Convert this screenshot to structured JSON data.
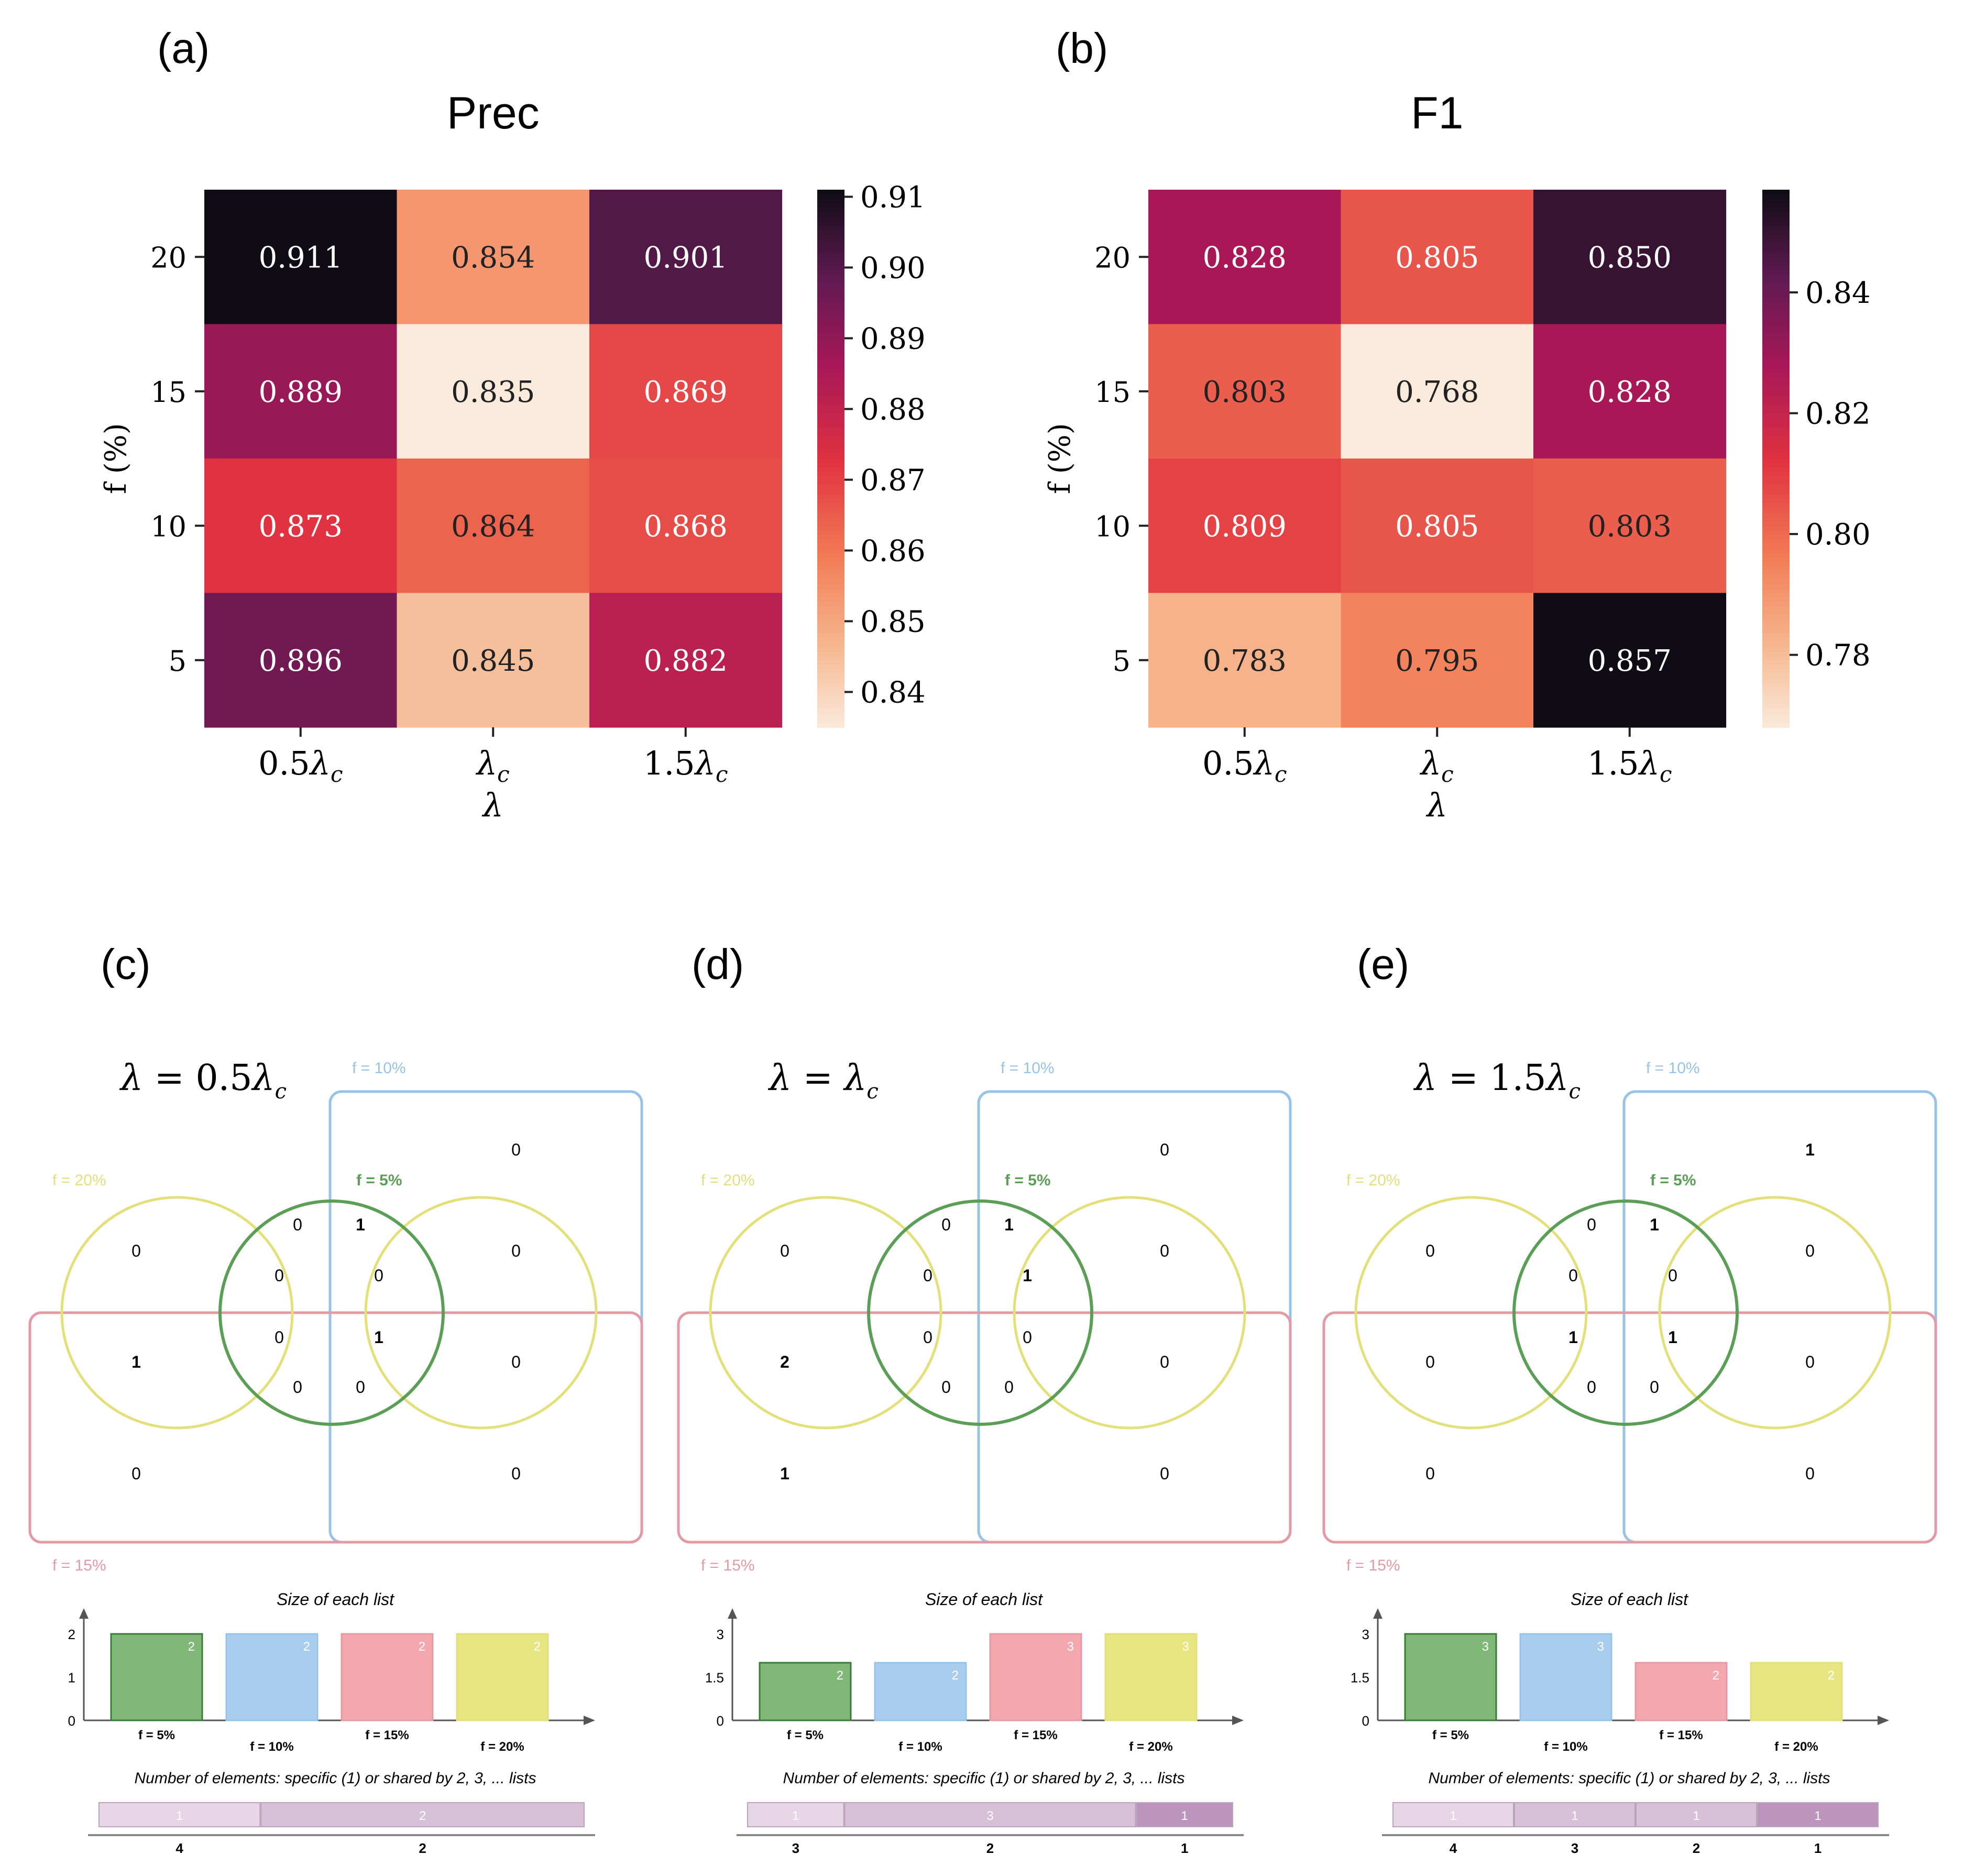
{
  "panels": {
    "a": "(a)",
    "b": "(b)",
    "c": "(c)",
    "d": "(d)",
    "e": "(e)"
  },
  "chart_data": [
    {
      "type": "heatmap",
      "panel": "(a)",
      "title": "Prec",
      "xlabel": "λ",
      "ylabel": "f (%)",
      "x_categories": [
        "0.5λc",
        "λc",
        "1.5λc"
      ],
      "y_categories": [
        "20",
        "15",
        "10",
        "5"
      ],
      "values": [
        [
          0.911,
          0.854,
          0.901
        ],
        [
          0.889,
          0.835,
          0.869
        ],
        [
          0.873,
          0.864,
          0.868
        ],
        [
          0.896,
          0.845,
          0.882
        ]
      ],
      "value_labels": [
        [
          "0.911",
          "0.854",
          "0.901"
        ],
        [
          "0.889",
          "0.835",
          "0.869"
        ],
        [
          "0.873",
          "0.864",
          "0.868"
        ],
        [
          "0.896",
          "0.845",
          "0.882"
        ]
      ],
      "colorbar": {
        "range": [
          0.835,
          0.911
        ],
        "ticks": [
          0.91,
          0.9,
          0.89,
          0.88,
          0.87,
          0.86,
          0.85,
          0.84
        ],
        "tick_labels": [
          "0.91",
          "0.90",
          "0.89",
          "0.88",
          "0.87",
          "0.86",
          "0.85",
          "0.84"
        ]
      }
    },
    {
      "type": "heatmap",
      "panel": "(b)",
      "title": "F1",
      "xlabel": "λ",
      "ylabel": "f (%)",
      "x_categories": [
        "0.5λc",
        "λc",
        "1.5λc"
      ],
      "y_categories": [
        "20",
        "15",
        "10",
        "5"
      ],
      "values": [
        [
          0.828,
          0.805,
          0.85
        ],
        [
          0.803,
          0.768,
          0.828
        ],
        [
          0.809,
          0.805,
          0.803
        ],
        [
          0.783,
          0.795,
          0.857
        ]
      ],
      "value_labels": [
        [
          "0.828",
          "0.805",
          "0.850"
        ],
        [
          "0.803",
          "0.768",
          "0.828"
        ],
        [
          "0.809",
          "0.805",
          "0.803"
        ],
        [
          "0.783",
          "0.795",
          "0.857"
        ]
      ],
      "colorbar": {
        "range": [
          0.768,
          0.857
        ],
        "ticks": [
          0.84,
          0.82,
          0.8,
          0.78
        ],
        "tick_labels": [
          "0.84",
          "0.82",
          "0.80",
          "0.78"
        ]
      }
    }
  ],
  "venn_panels": [
    {
      "panel": "(c)",
      "lambda_lhs": "λ = ",
      "lambda_rhs": "0.5λ",
      "set_labels": {
        "f10": "f = 10%",
        "f20": "f = 20%",
        "f5": "f = 5%",
        "f15": "f = 15%"
      },
      "regions": {
        "topright": "0",
        "left_outer": "0",
        "top_left": "0",
        "top_right": "1",
        "right_outer": "0",
        "c_ul": "0",
        "c_ur": "0",
        "c_ll": "0",
        "c_lr": "1",
        "left_pink": "1",
        "right_pink": "0",
        "bot_left": "0",
        "bot_right": "0",
        "bl_corner": "0",
        "br_corner": "0"
      },
      "bar_chart": {
        "title": "Size of each list",
        "y_ticks": [
          "2",
          "1",
          "0"
        ],
        "ymax": 2,
        "bars": [
          {
            "label": "f = 5%",
            "value": 2,
            "value_label": "2"
          },
          {
            "label": "f = 10%",
            "value": 2,
            "value_label": "2"
          },
          {
            "label": "f = 15%",
            "value": 2,
            "value_label": "2"
          },
          {
            "label": "f = 20%",
            "value": 2,
            "value_label": "2"
          }
        ]
      },
      "elements_title": "Number of elements: specific (1) or shared by 2, 3, ... lists",
      "elements": [
        {
          "count": "1",
          "shared_by": "4",
          "weight": 1
        },
        {
          "count": "2",
          "shared_by": "2",
          "weight": 2
        }
      ]
    },
    {
      "panel": "(d)",
      "lambda_lhs": "λ = ",
      "lambda_rhs": "λ",
      "set_labels": {
        "f10": "f = 10%",
        "f20": "f = 20%",
        "f5": "f = 5%",
        "f15": "f = 15%"
      },
      "regions": {
        "topright": "0",
        "left_outer": "0",
        "top_left": "0",
        "top_right": "1",
        "right_outer": "0",
        "c_ul": "0",
        "c_ur": "1",
        "c_ll": "0",
        "c_lr": "0",
        "left_pink": "2",
        "right_pink": "0",
        "bot_left": "0",
        "bot_right": "0",
        "bl_corner": "1",
        "br_corner": "0"
      },
      "bar_chart": {
        "title": "Size of each list",
        "y_ticks": [
          "3",
          "1.5",
          "0"
        ],
        "ymax": 3,
        "bars": [
          {
            "label": "f = 5%",
            "value": 2,
            "value_label": "2"
          },
          {
            "label": "f = 10%",
            "value": 2,
            "value_label": "2"
          },
          {
            "label": "f = 15%",
            "value": 3,
            "value_label": "3"
          },
          {
            "label": "f = 20%",
            "value": 3,
            "value_label": "3"
          }
        ]
      },
      "elements_title": "Number of elements: specific (1) or shared by 2, 3, ... lists",
      "elements": [
        {
          "count": "1",
          "shared_by": "3",
          "weight": 1
        },
        {
          "count": "3",
          "shared_by": "2",
          "weight": 3
        },
        {
          "count": "1",
          "shared_by": "1",
          "weight": 1
        }
      ]
    },
    {
      "panel": "(e)",
      "lambda_lhs": "λ = ",
      "lambda_rhs": "1.5λ",
      "set_labels": {
        "f10": "f = 10%",
        "f20": "f = 20%",
        "f5": "f = 5%",
        "f15": "f = 15%"
      },
      "regions": {
        "topright": "1",
        "left_outer": "0",
        "top_left": "0",
        "top_right": "1",
        "right_outer": "0",
        "c_ul": "0",
        "c_ur": "0",
        "c_ll": "1",
        "c_lr": "1",
        "left_pink": "0",
        "right_pink": "0",
        "bot_left": "0",
        "bot_right": "0",
        "bl_corner": "0",
        "br_corner": "0"
      },
      "bar_chart": {
        "title": "Size of each list",
        "y_ticks": [
          "3",
          "1.5",
          "0"
        ],
        "ymax": 3,
        "bars": [
          {
            "label": "f = 5%",
            "value": 3,
            "value_label": "3"
          },
          {
            "label": "f = 10%",
            "value": 3,
            "value_label": "3"
          },
          {
            "label": "f = 15%",
            "value": 2,
            "value_label": "2"
          },
          {
            "label": "f = 20%",
            "value": 2,
            "value_label": "2"
          }
        ]
      },
      "elements_title": "Number of elements: specific (1) or shared by 2, 3, ... lists",
      "elements": [
        {
          "count": "1",
          "shared_by": "4",
          "weight": 1
        },
        {
          "count": "1",
          "shared_by": "3",
          "weight": 1
        },
        {
          "count": "1",
          "shared_by": "2",
          "weight": 1
        },
        {
          "count": "1",
          "shared_by": "1",
          "weight": 1
        }
      ]
    }
  ],
  "colors": {
    "green": "#5a9f55",
    "green_fill": "#80b878",
    "blue": "#97c3e8",
    "blue_fill": "#a9cdee",
    "pink": "#e39aa4",
    "pink_fill": "#f4a8ae",
    "yellow": "#e3e07a",
    "yellow_fill": "#e7e682",
    "purple_light": "#e6d6e6",
    "purple_mid": "#d8c0d9",
    "purple_dark": "#bc94be"
  }
}
